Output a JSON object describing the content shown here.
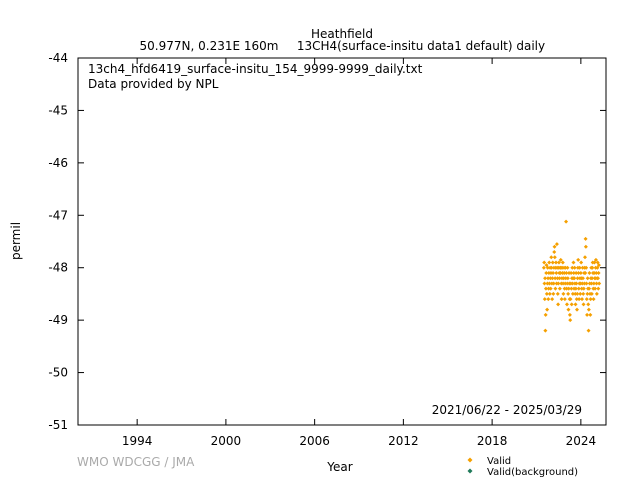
{
  "header": {
    "site": "Heathfield",
    "location": "50.977N, 0.231E 160m",
    "species_info": "13CH4(surface-insitu data1 default) daily"
  },
  "annotation": {
    "filename": "13ch4_hfd6419_surface-insitu_154_9999-9999_daily.txt",
    "provider": "Data provided by NPL",
    "date_range": "2021/06/22 - 2025/03/29"
  },
  "footer": {
    "credit": "WMO WDCGG / JMA"
  },
  "colors": {
    "valid": "#f5a000",
    "valid_background": "#1f7a5a",
    "credit_text": "#aaaaaa"
  },
  "chart_data": {
    "type": "scatter",
    "xlabel": "Year",
    "ylabel": "permil",
    "xlim": [
      1990.0,
      2025.7
    ],
    "ylim": [
      -51,
      -44
    ],
    "x_ticks": [
      1994,
      2000,
      2006,
      2012,
      2018,
      2024
    ],
    "y_ticks": [
      -51,
      -50,
      -49,
      -48,
      -47,
      -46,
      -45,
      -44
    ],
    "grid": false,
    "legend_position": "bottom-right",
    "legend": [
      "Valid",
      "Valid(background)"
    ],
    "series": [
      {
        "name": "Valid",
        "marker": "diamond",
        "points": [
          [
            2021.5,
            -48.0
          ],
          [
            2021.52,
            -47.9
          ],
          [
            2021.54,
            -48.3
          ],
          [
            2021.56,
            -48.6
          ],
          [
            2021.58,
            -48.2
          ],
          [
            2021.6,
            -49.2
          ],
          [
            2021.62,
            -48.9
          ],
          [
            2021.64,
            -48.4
          ],
          [
            2021.66,
            -48.1
          ],
          [
            2021.68,
            -47.95
          ],
          [
            2021.7,
            -48.5
          ],
          [
            2021.72,
            -48.8
          ],
          [
            2021.74,
            -48.3
          ],
          [
            2021.76,
            -48.0
          ],
          [
            2021.78,
            -48.2
          ],
          [
            2021.8,
            -48.6
          ],
          [
            2021.82,
            -48.4
          ],
          [
            2021.84,
            -48.1
          ],
          [
            2021.86,
            -47.9
          ],
          [
            2021.88,
            -48.3
          ],
          [
            2021.9,
            -48.5
          ],
          [
            2021.92,
            -48.0
          ],
          [
            2021.94,
            -48.2
          ],
          [
            2021.96,
            -48.4
          ],
          [
            2021.98,
            -48.1
          ],
          [
            2022.0,
            -47.8
          ],
          [
            2022.02,
            -48.0
          ],
          [
            2022.04,
            -48.3
          ],
          [
            2022.06,
            -48.6
          ],
          [
            2022.08,
            -48.2
          ],
          [
            2022.1,
            -47.9
          ],
          [
            2022.12,
            -48.1
          ],
          [
            2022.14,
            -48.5
          ],
          [
            2022.16,
            -48.3
          ],
          [
            2022.18,
            -48.0
          ],
          [
            2022.2,
            -47.7
          ],
          [
            2022.22,
            -47.6
          ],
          [
            2022.24,
            -47.8
          ],
          [
            2022.26,
            -48.2
          ],
          [
            2022.28,
            -48.4
          ],
          [
            2022.3,
            -48.0
          ],
          [
            2022.32,
            -47.9
          ],
          [
            2022.34,
            -48.1
          ],
          [
            2022.36,
            -48.3
          ],
          [
            2022.38,
            -47.55
          ],
          [
            2022.4,
            -48.0
          ],
          [
            2022.42,
            -48.2
          ],
          [
            2022.44,
            -48.5
          ],
          [
            2022.46,
            -48.7
          ],
          [
            2022.48,
            -48.3
          ],
          [
            2022.5,
            -48.0
          ],
          [
            2022.52,
            -47.9
          ],
          [
            2022.54,
            -48.1
          ],
          [
            2022.56,
            -48.2
          ],
          [
            2022.58,
            -48.4
          ],
          [
            2022.6,
            -48.0
          ],
          [
            2022.62,
            -48.1
          ],
          [
            2022.64,
            -47.85
          ],
          [
            2022.66,
            -48.0
          ],
          [
            2022.68,
            -48.3
          ],
          [
            2022.7,
            -48.6
          ],
          [
            2022.72,
            -48.2
          ],
          [
            2022.74,
            -48.0
          ],
          [
            2022.76,
            -48.1
          ],
          [
            2022.78,
            -47.9
          ],
          [
            2022.8,
            -48.3
          ],
          [
            2022.82,
            -48.5
          ],
          [
            2022.84,
            -48.2
          ],
          [
            2022.86,
            -48.0
          ],
          [
            2022.88,
            -48.1
          ],
          [
            2022.9,
            -48.4
          ],
          [
            2022.92,
            -48.6
          ],
          [
            2022.94,
            -48.3
          ],
          [
            2022.96,
            -48.0
          ],
          [
            2022.98,
            -48.2
          ],
          [
            2023.0,
            -47.12
          ],
          [
            2023.02,
            -48.1
          ],
          [
            2023.04,
            -48.4
          ],
          [
            2023.06,
            -48.7
          ],
          [
            2023.08,
            -48.3
          ],
          [
            2023.1,
            -48.0
          ],
          [
            2023.12,
            -48.2
          ],
          [
            2023.14,
            -48.5
          ],
          [
            2023.16,
            -48.8
          ],
          [
            2023.18,
            -48.4
          ],
          [
            2023.2,
            -48.1
          ],
          [
            2023.22,
            -48.3
          ],
          [
            2023.24,
            -48.6
          ],
          [
            2023.26,
            -48.9
          ],
          [
            2023.28,
            -49.0
          ],
          [
            2023.3,
            -48.6
          ],
          [
            2023.32,
            -48.3
          ],
          [
            2023.34,
            -48.1
          ],
          [
            2023.36,
            -48.4
          ],
          [
            2023.38,
            -48.7
          ],
          [
            2023.4,
            -48.2
          ],
          [
            2023.42,
            -48.0
          ],
          [
            2023.44,
            -48.3
          ],
          [
            2023.46,
            -48.5
          ],
          [
            2023.48,
            -48.2
          ],
          [
            2023.5,
            -47.9
          ],
          [
            2023.52,
            -48.1
          ],
          [
            2023.54,
            -48.4
          ],
          [
            2023.56,
            -48.2
          ],
          [
            2023.58,
            -48.0
          ],
          [
            2023.6,
            -48.3
          ],
          [
            2023.62,
            -48.5
          ],
          [
            2023.64,
            -48.7
          ],
          [
            2023.66,
            -48.4
          ],
          [
            2023.68,
            -48.1
          ],
          [
            2023.7,
            -48.3
          ],
          [
            2023.72,
            -48.6
          ],
          [
            2023.74,
            -48.8
          ],
          [
            2023.76,
            -48.5
          ],
          [
            2023.78,
            -48.2
          ],
          [
            2023.8,
            -48.0
          ],
          [
            2023.82,
            -47.85
          ],
          [
            2023.84,
            -48.1
          ],
          [
            2023.86,
            -48.4
          ],
          [
            2023.88,
            -48.6
          ],
          [
            2023.9,
            -48.3
          ],
          [
            2023.92,
            -48.0
          ],
          [
            2023.94,
            -48.2
          ],
          [
            2023.96,
            -48.5
          ],
          [
            2023.98,
            -48.3
          ],
          [
            2024.0,
            -48.1
          ],
          [
            2024.02,
            -47.9
          ],
          [
            2024.04,
            -48.2
          ],
          [
            2024.06,
            -48.4
          ],
          [
            2024.08,
            -48.6
          ],
          [
            2024.1,
            -48.3
          ],
          [
            2024.12,
            -48.0
          ],
          [
            2024.14,
            -48.2
          ],
          [
            2024.16,
            -48.5
          ],
          [
            2024.18,
            -48.7
          ],
          [
            2024.2,
            -48.4
          ],
          [
            2024.22,
            -48.1
          ],
          [
            2024.24,
            -48.3
          ],
          [
            2024.26,
            -48.0
          ],
          [
            2024.28,
            -47.8
          ],
          [
            2024.3,
            -48.1
          ],
          [
            2024.32,
            -47.45
          ],
          [
            2024.34,
            -47.6
          ],
          [
            2024.36,
            -48.0
          ],
          [
            2024.38,
            -48.3
          ],
          [
            2024.4,
            -48.6
          ],
          [
            2024.42,
            -48.9
          ],
          [
            2024.44,
            -48.5
          ],
          [
            2024.46,
            -48.2
          ],
          [
            2024.48,
            -48.4
          ],
          [
            2024.5,
            -48.7
          ],
          [
            2024.52,
            -49.2
          ],
          [
            2024.54,
            -48.8
          ],
          [
            2024.56,
            -48.4
          ],
          [
            2024.58,
            -48.1
          ],
          [
            2024.6,
            -48.3
          ],
          [
            2024.62,
            -48.5
          ],
          [
            2024.64,
            -48.9
          ],
          [
            2024.66,
            -48.6
          ],
          [
            2024.68,
            -48.2
          ],
          [
            2024.7,
            -48.0
          ],
          [
            2024.72,
            -48.3
          ],
          [
            2024.74,
            -48.5
          ],
          [
            2024.76,
            -48.2
          ],
          [
            2024.78,
            -48.0
          ],
          [
            2024.8,
            -47.9
          ],
          [
            2024.82,
            -48.1
          ],
          [
            2024.84,
            -48.4
          ],
          [
            2024.86,
            -48.6
          ],
          [
            2024.88,
            -48.3
          ],
          [
            2024.9,
            -48.1
          ],
          [
            2024.92,
            -47.9
          ],
          [
            2024.94,
            -48.2
          ],
          [
            2024.96,
            -48.4
          ],
          [
            2024.98,
            -48.2
          ],
          [
            2025.0,
            -48.0
          ],
          [
            2025.02,
            -47.85
          ],
          [
            2025.04,
            -48.1
          ],
          [
            2025.06,
            -48.3
          ],
          [
            2025.08,
            -48.5
          ],
          [
            2025.1,
            -48.2
          ],
          [
            2025.12,
            -48.0
          ],
          [
            2025.14,
            -47.9
          ],
          [
            2025.16,
            -48.2
          ],
          [
            2025.18,
            -48.4
          ],
          [
            2025.2,
            -48.1
          ],
          [
            2025.22,
            -47.95
          ],
          [
            2025.24,
            -48.3
          ]
        ]
      },
      {
        "name": "Valid(background)",
        "marker": "diamond",
        "points": []
      }
    ]
  }
}
